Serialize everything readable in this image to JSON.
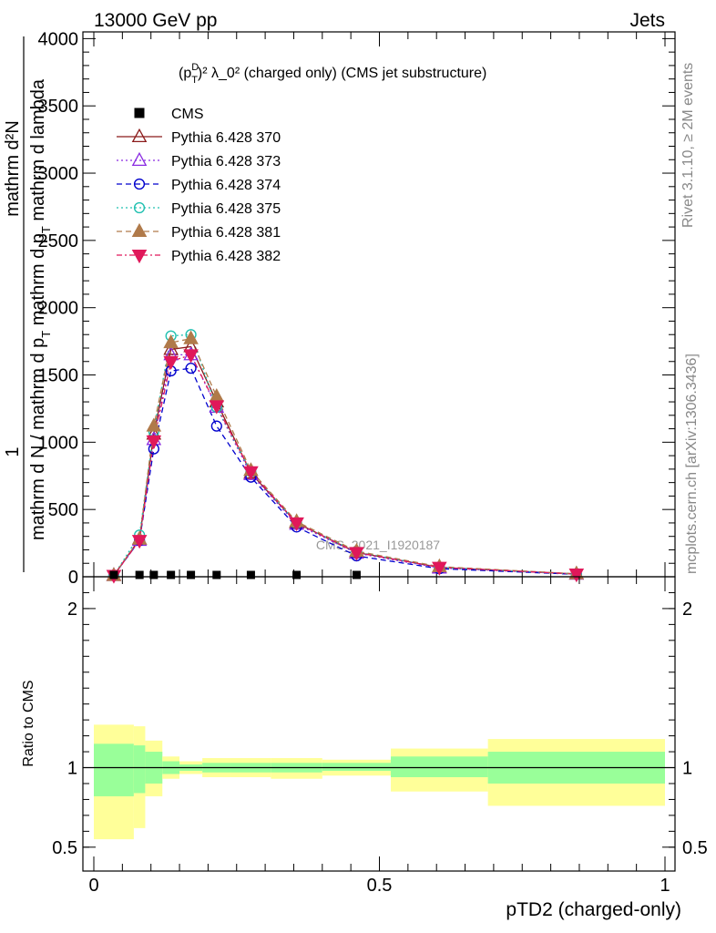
{
  "header": {
    "left": "13000 GeV pp",
    "right": "Jets"
  },
  "side_text": {
    "rivet": "Rivet 3.1.10, ≥ 2M events",
    "mcplots": "mcplots.cern.ch [arXiv:1306.3436]"
  },
  "chart_data": [
    {
      "type": "line",
      "title_prefix": "(p",
      "title_sup": "D",
      "title_sub": "T",
      "title_suffix": ")² λ_0² (charged only) (CMS jet substructure)",
      "ylabel_line1": "1",
      "ylabel_line2_prefix": "mathrm d N / mathrm d p",
      "ylabel_line2_sub": "T",
      "ylabel_line2_suffix": " mathrm d p",
      "ylabel_line2_sub2": "T",
      "ylabel_line2_suffix2": " mathrm d lambda",
      "ylabel_num": "mathrm d²N",
      "watermark": "CMS_2021_I1920187",
      "xlim": [
        0,
        1
      ],
      "ylim": [
        0,
        4050
      ],
      "yticks": [
        0,
        500,
        1000,
        1500,
        2000,
        2500,
        3000,
        3500,
        4000
      ],
      "ytick_labels": [
        "0",
        "500",
        "1000",
        "1500",
        "2000",
        "2500",
        "3000",
        "3500",
        "4000"
      ],
      "x": [
        0.035,
        0.09,
        0.105,
        0.135,
        0.175,
        0.215,
        0.275,
        0.355,
        0.46,
        0.605,
        0.845
      ],
      "cms_x": [
        0.035,
        0.08,
        0.105,
        0.135,
        0.17,
        0.215,
        0.275,
        0.355,
        0.46
      ],
      "cms_y": [
        0,
        0,
        0,
        0,
        0,
        0,
        0,
        0,
        0
      ],
      "series": [
        {
          "name": "CMS",
          "color": "#000000",
          "marker": "square",
          "dash": "none"
        },
        {
          "name": "Pythia 6.428 370",
          "color": "#8b1a1a",
          "marker": "triangle-open",
          "dash": "solid",
          "x": [
            0.035,
            0.08,
            0.105,
            0.135,
            0.17,
            0.215,
            0.275,
            0.355,
            0.46,
            0.605,
            0.845
          ],
          "values": [
            10,
            280,
            1060,
            1690,
            1710,
            1300,
            770,
            400,
            180,
            70,
            20
          ]
        },
        {
          "name": "Pythia 6.428 373",
          "color": "#8a2be2",
          "marker": "triangle-open",
          "dash": "dot",
          "x": [
            0.035,
            0.08,
            0.105,
            0.135,
            0.17,
            0.215,
            0.275,
            0.355,
            0.46,
            0.605,
            0.845
          ],
          "values": [
            10,
            270,
            1020,
            1650,
            1650,
            1260,
            760,
            390,
            175,
            65,
            20
          ]
        },
        {
          "name": "Pythia 6.428 374",
          "color": "#0000cd",
          "marker": "circle-open",
          "dash": "dash",
          "x": [
            0.035,
            0.08,
            0.105,
            0.135,
            0.17,
            0.215,
            0.275,
            0.355,
            0.46,
            0.605,
            0.845
          ],
          "values": [
            10,
            270,
            950,
            1530,
            1550,
            1120,
            740,
            370,
            155,
            60,
            18
          ]
        },
        {
          "name": "Pythia 6.428 375",
          "color": "#20c0b0",
          "marker": "circle-open",
          "dash": "dot",
          "x": [
            0.035,
            0.08,
            0.105,
            0.135,
            0.17,
            0.215,
            0.275,
            0.355,
            0.46,
            0.605,
            0.845
          ],
          "values": [
            10,
            310,
            1080,
            1790,
            1800,
            1260,
            780,
            400,
            185,
            70,
            20
          ]
        },
        {
          "name": "Pythia 6.428 381",
          "color": "#b07a4a",
          "marker": "triangle-filled",
          "dash": "dash",
          "x": [
            0.035,
            0.08,
            0.105,
            0.135,
            0.17,
            0.215,
            0.275,
            0.355,
            0.46,
            0.605,
            0.845
          ],
          "values": [
            10,
            280,
            1120,
            1740,
            1770,
            1340,
            790,
            410,
            190,
            75,
            22
          ]
        },
        {
          "name": "Pythia 6.428 382",
          "color": "#e0185a",
          "marker": "triangle-down-filled",
          "dash": "dashdot",
          "x": [
            0.035,
            0.08,
            0.105,
            0.135,
            0.17,
            0.215,
            0.275,
            0.355,
            0.46,
            0.605,
            0.845
          ],
          "values": [
            10,
            270,
            1010,
            1600,
            1650,
            1270,
            780,
            400,
            180,
            70,
            20
          ]
        }
      ]
    },
    {
      "type": "area",
      "ylabel": "Ratio to CMS",
      "xlabel": "pTD2 (charged-only)",
      "xlim": [
        0,
        1
      ],
      "ylim": [
        0.35,
        2.2
      ],
      "xticks": [
        0,
        0.5,
        1
      ],
      "xtick_labels": [
        "0",
        "0.5",
        "1"
      ],
      "yticks": [
        0.5,
        1,
        2
      ],
      "ytick_labels": [
        "0.5",
        "1",
        "2"
      ],
      "ratio_line": 1,
      "bands": [
        {
          "x0": 0.0,
          "x1": 0.07,
          "inner_lo": 0.82,
          "inner_hi": 1.15,
          "outer_lo": 0.55,
          "outer_hi": 1.27
        },
        {
          "x0": 0.07,
          "x1": 0.09,
          "inner_lo": 0.84,
          "inner_hi": 1.14,
          "outer_lo": 0.62,
          "outer_hi": 1.26
        },
        {
          "x0": 0.09,
          "x1": 0.12,
          "inner_lo": 0.9,
          "inner_hi": 1.1,
          "outer_lo": 0.82,
          "outer_hi": 1.17
        },
        {
          "x0": 0.12,
          "x1": 0.15,
          "inner_lo": 0.96,
          "inner_hi": 1.04,
          "outer_lo": 0.93,
          "outer_hi": 1.07
        },
        {
          "x0": 0.15,
          "x1": 0.19,
          "inner_lo": 0.98,
          "inner_hi": 1.02,
          "outer_lo": 0.96,
          "outer_hi": 1.04
        },
        {
          "x0": 0.19,
          "x1": 0.24,
          "inner_lo": 0.97,
          "inner_hi": 1.03,
          "outer_lo": 0.94,
          "outer_hi": 1.06
        },
        {
          "x0": 0.24,
          "x1": 0.31,
          "inner_lo": 0.97,
          "inner_hi": 1.03,
          "outer_lo": 0.94,
          "outer_hi": 1.06
        },
        {
          "x0": 0.31,
          "x1": 0.4,
          "inner_lo": 0.97,
          "inner_hi": 1.03,
          "outer_lo": 0.93,
          "outer_hi": 1.06
        },
        {
          "x0": 0.4,
          "x1": 0.52,
          "inner_lo": 0.98,
          "inner_hi": 1.03,
          "outer_lo": 0.95,
          "outer_hi": 1.05
        },
        {
          "x0": 0.52,
          "x1": 0.69,
          "inner_lo": 0.94,
          "inner_hi": 1.07,
          "outer_lo": 0.85,
          "outer_hi": 1.12
        },
        {
          "x0": 0.69,
          "x1": 1.0,
          "inner_lo": 0.9,
          "inner_hi": 1.1,
          "outer_lo": 0.76,
          "outer_hi": 1.18
        }
      ],
      "inner_color": "#99ff99",
      "outer_color": "#ffff99"
    }
  ]
}
